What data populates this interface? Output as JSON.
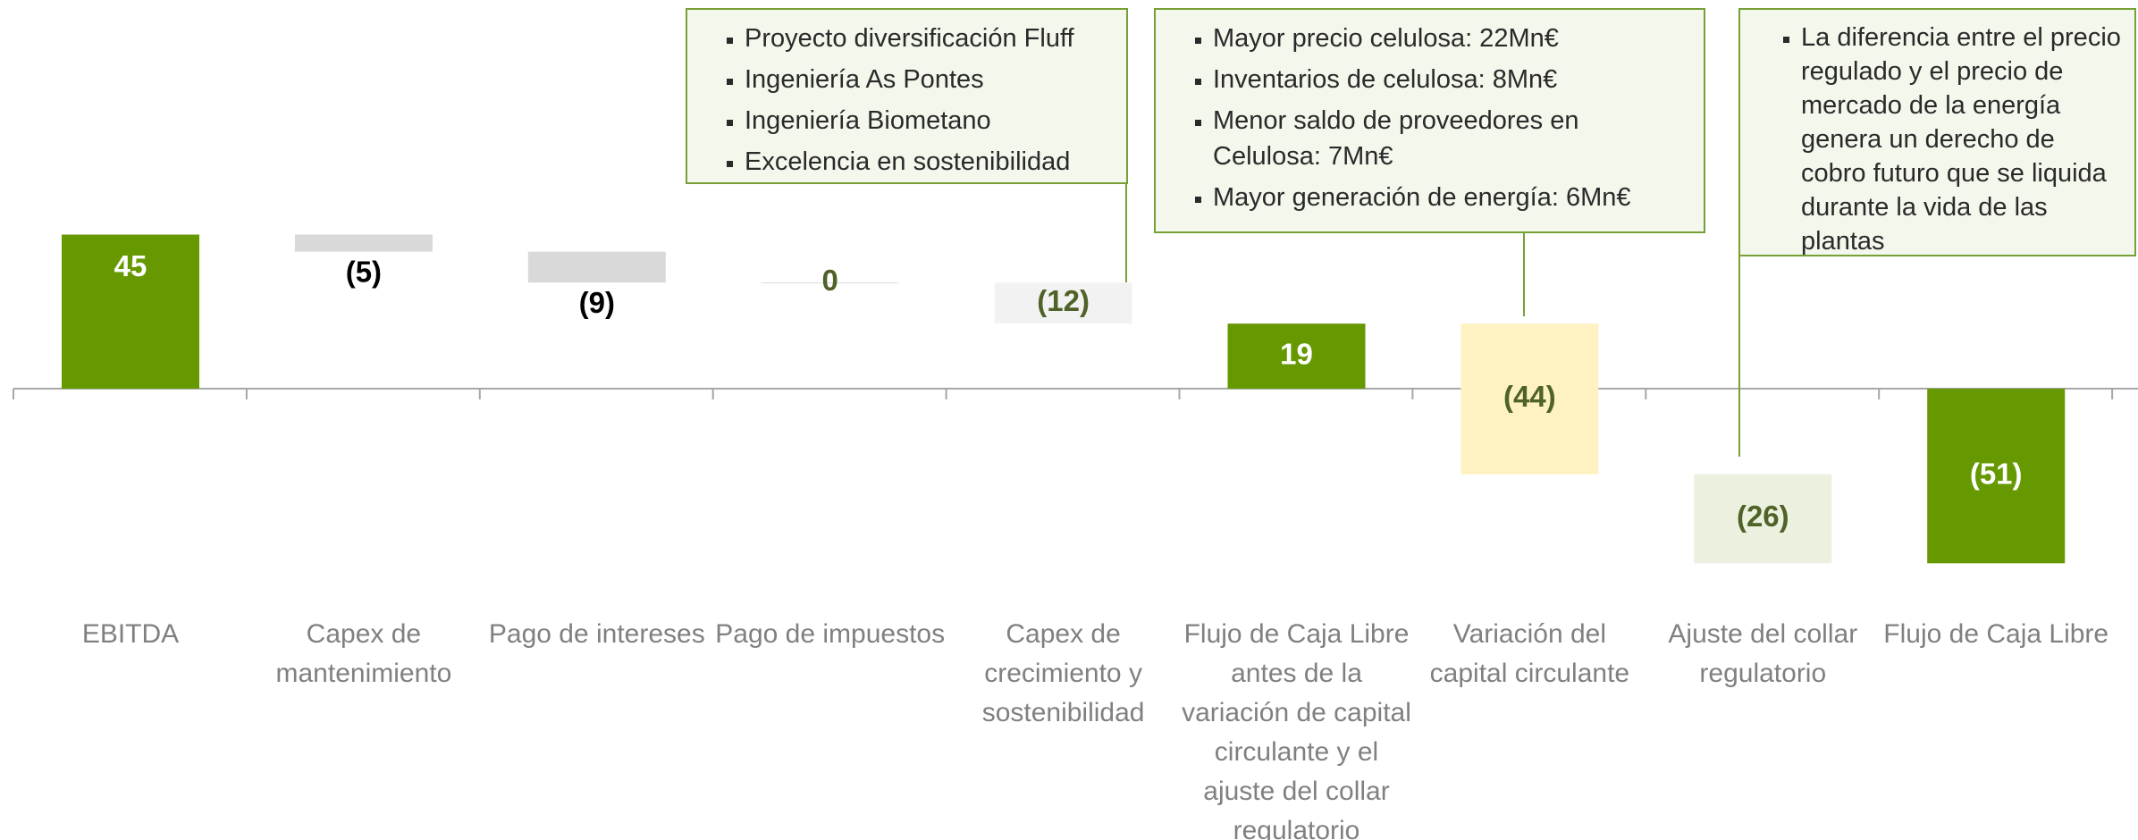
{
  "chart_data": {
    "type": "waterfall",
    "categories": [
      "EBITDA",
      "Capex de mantenimiento",
      "Pago de intereses",
      "Pago de impuestos",
      "Capex de crecimiento y sostenibilidad",
      "Flujo de Caja Libre antes de la variación de capital circulante y el ajuste del collar regulatorio",
      "Variación del capital circulante",
      "Ajuste del collar regulatorio",
      "Flujo de Caja Libre"
    ],
    "values": [
      45,
      -5,
      -9,
      0,
      -12,
      19,
      -44,
      -26,
      -51
    ],
    "value_labels": [
      "45",
      "(5)",
      "(9)",
      "0",
      "(12)",
      "19",
      "(44)",
      "(26)",
      "(51)"
    ],
    "is_total": [
      true,
      false,
      false,
      false,
      false,
      true,
      false,
      false,
      true
    ],
    "colors": [
      "#669900",
      "#d9d9d9",
      "#d9d9d9",
      "#d9d9d9",
      "#f2f2f2",
      "#669900",
      "#fff2c2",
      "#ebf1de",
      "#669900"
    ],
    "label_colors": [
      "#ffffff",
      "#000000",
      "#000000",
      "#4f6228",
      "#4f6228",
      "#ffffff",
      "#4f6228",
      "#4f6228",
      "#ffffff"
    ],
    "ylim": [
      -130,
      113
    ],
    "annotations": [
      {
        "category": 4,
        "items": [
          "Proyecto diversificación Fluff",
          "Ingeniería As Pontes",
          "Ingeniería Biometano",
          "Excelencia en sostenibilidad"
        ]
      },
      {
        "category": 6,
        "items": [
          "Mayor precio celulosa: 22Mn€",
          "Inventarios de celulosa: 8Mn€",
          "Menor saldo de proveedores en Celulosa: 7Mn€",
          "Mayor generación de energía: 6Mn€"
        ]
      },
      {
        "category": 7,
        "items": [
          "La diferencia entre el precio regulado y el precio de mercado de la energía genera un derecho de cobro futuro que se liquida durante la vida de las plantas"
        ]
      }
    ]
  }
}
